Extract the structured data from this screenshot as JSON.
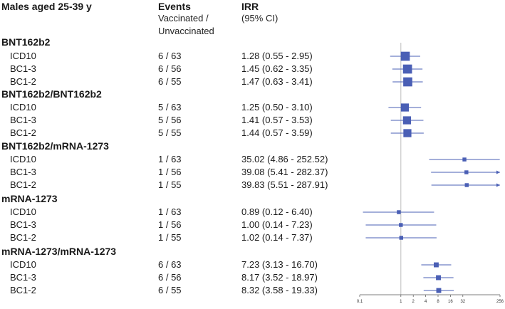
{
  "header": {
    "title": "Males aged 25-39 y",
    "events_title": "Events",
    "events_sub1": "Vaccinated /",
    "events_sub2": "Unvaccinated",
    "irr_title": "IRR",
    "irr_sub": "(95% CI)"
  },
  "chart_data": {
    "type": "forest",
    "xscale": "log2",
    "xlim": [
      0.1,
      256
    ],
    "reference_line": 1,
    "ticks": [
      {
        "value": 0.1,
        "label": "0.1"
      },
      {
        "value": 1,
        "label": "1"
      },
      {
        "value": 2,
        "label": "2"
      },
      {
        "value": 4,
        "label": "4"
      },
      {
        "value": 8,
        "label": "8"
      },
      {
        "value": 16,
        "label": "16"
      },
      {
        "value": 32,
        "label": "32"
      },
      {
        "value": 256,
        "label": "256"
      }
    ],
    "color": "#4a5fb5",
    "groups": [
      {
        "name": "BNT162b2",
        "rows": [
          {
            "label": "ICD10",
            "events": "6 / 63",
            "irr_text": "1.28 (0.55 - 2.95)",
            "est": 1.28,
            "lo": 0.55,
            "hi": 2.95,
            "weight": 6
          },
          {
            "label": "BC1-3",
            "events": "6 / 56",
            "irr_text": "1.45 (0.62 - 3.35)",
            "est": 1.45,
            "lo": 0.62,
            "hi": 3.35,
            "weight": 6
          },
          {
            "label": "BC1-2",
            "events": "6 / 55",
            "irr_text": "1.47 (0.63 - 3.41)",
            "est": 1.47,
            "lo": 0.63,
            "hi": 3.41,
            "weight": 6
          }
        ]
      },
      {
        "name": "BNT162b2/BNT162b2",
        "rows": [
          {
            "label": "ICD10",
            "events": "5 / 63",
            "irr_text": "1.25 (0.50 - 3.10)",
            "est": 1.25,
            "lo": 0.5,
            "hi": 3.1,
            "weight": 5
          },
          {
            "label": "BC1-3",
            "events": "5 / 56",
            "irr_text": "1.41 (0.57 - 3.53)",
            "est": 1.41,
            "lo": 0.57,
            "hi": 3.53,
            "weight": 5
          },
          {
            "label": "BC1-2",
            "events": "5 / 55",
            "irr_text": "1.44 (0.57 - 3.59)",
            "est": 1.44,
            "lo": 0.57,
            "hi": 3.59,
            "weight": 5
          }
        ]
      },
      {
        "name": "BNT162b2/mRNA-1273",
        "rows": [
          {
            "label": "ICD10",
            "events": "1 / 63",
            "irr_text": "35.02 (4.86 - 252.52)",
            "est": 35.02,
            "lo": 4.86,
            "hi": 252.52,
            "weight": 1
          },
          {
            "label": "BC1-3",
            "events": "1 / 56",
            "irr_text": "39.08 (5.41 - 282.37)",
            "est": 39.08,
            "lo": 5.41,
            "hi": 282.37,
            "weight": 1
          },
          {
            "label": "BC1-2",
            "events": "1 / 55",
            "irr_text": "39.83 (5.51 - 287.91)",
            "est": 39.83,
            "lo": 5.51,
            "hi": 287.91,
            "weight": 1
          }
        ]
      },
      {
        "name": "mRNA-1273",
        "rows": [
          {
            "label": "ICD10",
            "events": "1 / 63",
            "irr_text": "0.89 (0.12 - 6.40)",
            "est": 0.89,
            "lo": 0.12,
            "hi": 6.4,
            "weight": 1
          },
          {
            "label": "BC1-3",
            "events": "1 / 56",
            "irr_text": "1.00 (0.14 - 7.23)",
            "est": 1.0,
            "lo": 0.14,
            "hi": 7.23,
            "weight": 1
          },
          {
            "label": "BC1-2",
            "events": "1 / 55",
            "irr_text": "1.02 (0.14 - 7.37)",
            "est": 1.02,
            "lo": 0.14,
            "hi": 7.37,
            "weight": 1
          }
        ]
      },
      {
        "name": "mRNA-1273/mRNA-1273",
        "rows": [
          {
            "label": "ICD10",
            "events": "6 / 63",
            "irr_text": "7.23 (3.13 - 16.70)",
            "est": 7.23,
            "lo": 3.13,
            "hi": 16.7,
            "weight": 2
          },
          {
            "label": "BC1-3",
            "events": "6 / 56",
            "irr_text": "8.17 (3.52 - 18.97)",
            "est": 8.17,
            "lo": 3.52,
            "hi": 18.97,
            "weight": 2
          },
          {
            "label": "BC1-2",
            "events": "6 / 55",
            "irr_text": "8.32 (3.58 - 19.33)",
            "est": 8.32,
            "lo": 3.58,
            "hi": 19.33,
            "weight": 2
          }
        ]
      }
    ]
  }
}
